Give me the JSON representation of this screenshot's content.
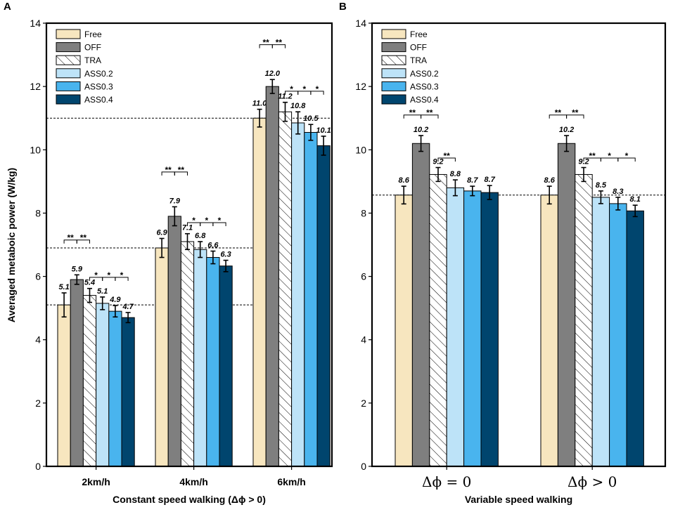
{
  "figure": {
    "ylabel": "Averaged metaboic power (W/kg)",
    "yticks": [
      "0",
      "2",
      "4",
      "6",
      "8",
      "10",
      "12",
      "14"
    ],
    "legend": [
      "Free",
      "OFF",
      "TRA",
      "ASS0.2",
      "ASS0.3",
      "ASS0.4"
    ]
  },
  "colors": {
    "Free": "#f7e6bf",
    "OFF": "#7f7f7f",
    "TRA": "#ffffff",
    "ASS0.2": "#bde3f8",
    "ASS0.3": "#49b4ee",
    "ASS0.4": "#00456e"
  },
  "chart_data": [
    {
      "panel": "A",
      "type": "bar",
      "xlabel": "Constant speed walking (Δϕ > 0)",
      "ylabel": "Averaged metaboic power (W/kg)",
      "ylim": [
        0,
        14
      ],
      "categories": [
        "2km/h",
        "4km/h",
        "6km/h"
      ],
      "series": [
        {
          "name": "Free",
          "values": [
            5.1,
            6.9,
            11.0
          ],
          "errors": [
            0.38,
            0.3,
            0.28
          ],
          "labels": [
            "5.1",
            "6.9",
            "11.0"
          ]
        },
        {
          "name": "OFF",
          "values": [
            5.9,
            7.9,
            12.0
          ],
          "errors": [
            0.15,
            0.3,
            0.22
          ],
          "labels": [
            "5.9",
            "7.9",
            "12.0"
          ]
        },
        {
          "name": "TRA",
          "values": [
            5.4,
            7.1,
            11.2
          ],
          "errors": [
            0.22,
            0.25,
            0.3
          ],
          "labels": [
            "5.4",
            "7.1",
            "11.2"
          ]
        },
        {
          "name": "ASS0.2",
          "values": [
            5.15,
            6.85,
            10.85
          ],
          "errors": [
            0.2,
            0.25,
            0.35
          ],
          "labels": [
            "5.1",
            "6.8",
            "10.8"
          ]
        },
        {
          "name": "ASS0.3",
          "values": [
            4.9,
            6.6,
            10.55
          ],
          "errors": [
            0.18,
            0.2,
            0.25
          ],
          "labels": [
            "4.9",
            "6.6",
            "10.5"
          ]
        },
        {
          "name": "ASS0.4",
          "values": [
            4.7,
            6.33,
            10.13
          ],
          "errors": [
            0.16,
            0.18,
            0.3
          ],
          "labels": [
            "4.7",
            "6.3",
            "10.1"
          ]
        }
      ],
      "reference_lines": [
        5.1,
        6.9,
        11.0
      ],
      "significance": [
        {
          "category": 0,
          "from": 0,
          "to": 1,
          "label": "**"
        },
        {
          "category": 0,
          "from": 1,
          "to": 2,
          "label": "**"
        },
        {
          "category": 0,
          "from": 2,
          "to": 3,
          "label": "*"
        },
        {
          "category": 0,
          "from": 3,
          "to": 4,
          "label": "*"
        },
        {
          "category": 0,
          "from": 4,
          "to": 5,
          "label": "*"
        },
        {
          "category": 1,
          "from": 0,
          "to": 1,
          "label": "**"
        },
        {
          "category": 1,
          "from": 1,
          "to": 2,
          "label": "**"
        },
        {
          "category": 1,
          "from": 2,
          "to": 3,
          "label": "*"
        },
        {
          "category": 1,
          "from": 3,
          "to": 4,
          "label": "*"
        },
        {
          "category": 1,
          "from": 4,
          "to": 5,
          "label": "*"
        },
        {
          "category": 2,
          "from": 0,
          "to": 1,
          "label": "**"
        },
        {
          "category": 2,
          "from": 1,
          "to": 2,
          "label": "**"
        },
        {
          "category": 2,
          "from": 2,
          "to": 3,
          "label": "*"
        },
        {
          "category": 2,
          "from": 3,
          "to": 4,
          "label": "*"
        },
        {
          "category": 2,
          "from": 4,
          "to": 5,
          "label": "*"
        }
      ]
    },
    {
      "panel": "B",
      "type": "bar",
      "xlabel": "Variable speed walking",
      "ylabel": "",
      "ylim": [
        0,
        14
      ],
      "categories": [
        "Δϕ = 0",
        "Δϕ > 0"
      ],
      "series": [
        {
          "name": "Free",
          "values": [
            8.57,
            8.57
          ],
          "errors": [
            0.28,
            0.28
          ],
          "labels": [
            "8.6",
            "8.6"
          ]
        },
        {
          "name": "OFF",
          "values": [
            10.2,
            10.2
          ],
          "errors": [
            0.25,
            0.25
          ],
          "labels": [
            "10.2",
            "10.2"
          ]
        },
        {
          "name": "TRA",
          "values": [
            9.22,
            9.22
          ],
          "errors": [
            0.22,
            0.22
          ],
          "labels": [
            "9.2",
            "9.2"
          ]
        },
        {
          "name": "ASS0.2",
          "values": [
            8.8,
            8.5
          ],
          "errors": [
            0.25,
            0.2
          ],
          "labels": [
            "8.8",
            "8.5"
          ]
        },
        {
          "name": "ASS0.3",
          "values": [
            8.7,
            8.3
          ],
          "errors": [
            0.15,
            0.2
          ],
          "labels": [
            "8.7",
            "8.3"
          ]
        },
        {
          "name": "ASS0.4",
          "values": [
            8.65,
            8.07
          ],
          "errors": [
            0.22,
            0.18
          ],
          "labels": [
            "8.7",
            "8.1"
          ]
        }
      ],
      "reference_lines": [
        8.57
      ],
      "significance": [
        {
          "category": 0,
          "from": 0,
          "to": 1,
          "label": "**"
        },
        {
          "category": 0,
          "from": 1,
          "to": 2,
          "label": "**"
        },
        {
          "category": 0,
          "from": 2,
          "to": 3,
          "label": "**"
        },
        {
          "category": 1,
          "from": 0,
          "to": 1,
          "label": "**"
        },
        {
          "category": 1,
          "from": 1,
          "to": 2,
          "label": "**"
        },
        {
          "category": 1,
          "from": 2,
          "to": 3,
          "label": "**"
        },
        {
          "category": 1,
          "from": 3,
          "to": 4,
          "label": "*"
        },
        {
          "category": 1,
          "from": 4,
          "to": 5,
          "label": "*"
        }
      ]
    }
  ]
}
